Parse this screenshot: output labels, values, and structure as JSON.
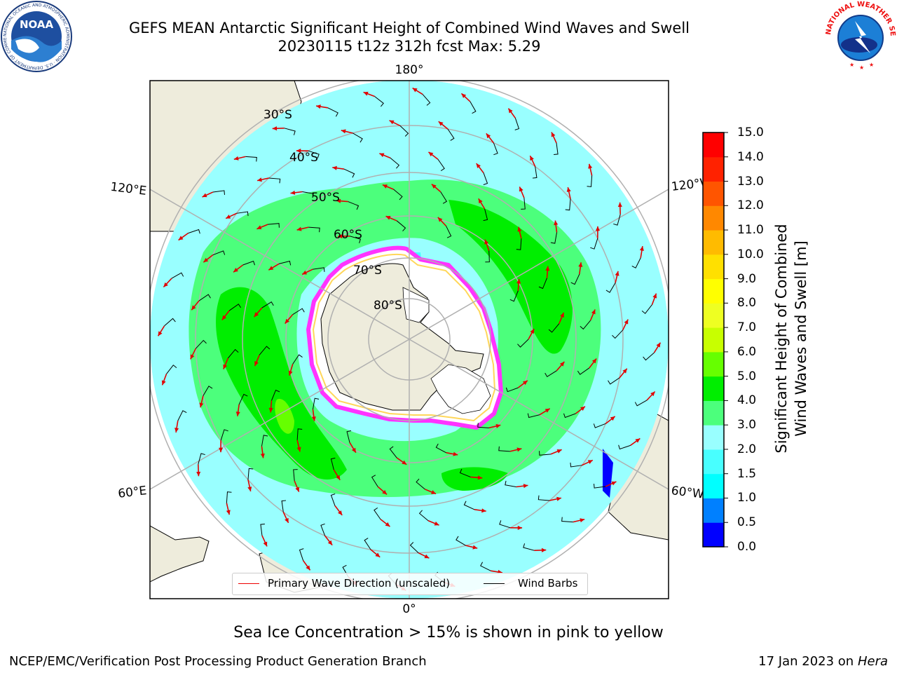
{
  "header": {
    "title_line1": "GEFS MEAN Antarctic Significant Height of Combined Wind Waves and Swell",
    "title_line2": "20230115 t12z 312h fcst   Max: 5.29"
  },
  "logos": {
    "noaa_text": "NOAA",
    "noaa_ring_text": "NATIONAL OCEANIC AND ATMOSPHERIC ADMINISTRATION · U.S. DEPARTMENT OF COMMERCE",
    "nws_ring_text": "NATIONAL WEATHER SERVICE"
  },
  "map": {
    "projection": "south polar stereographic",
    "longitude_labels": {
      "top": "180°",
      "bottom": "0°",
      "upper_left": "120°E",
      "upper_right": "120°W",
      "lower_left": "60°E",
      "lower_right": "60°W"
    },
    "latitude_labels": [
      "30°S",
      "40°S",
      "50°S",
      "60°S",
      "70°S",
      "80°S"
    ],
    "colors": {
      "land": "#eeecdc",
      "ice": "#ffffff",
      "ice_edge": "#ff33ff",
      "ocean_lowest": "#99ffff",
      "grid": "#b0b0b0"
    }
  },
  "colorbar": {
    "label_line1": "Significant Height of Combined",
    "label_line2": "Wind Waves and Swell [m]",
    "ticks": [
      "0.0",
      "0.5",
      "1.0",
      "1.5",
      "2.0",
      "3.0",
      "4.0",
      "5.0",
      "6.0",
      "7.0",
      "8.0",
      "9.0",
      "10.0",
      "11.0",
      "12.0",
      "13.0",
      "14.0",
      "15.0"
    ],
    "colors": [
      "#0000ff",
      "#0080ff",
      "#00ffff",
      "#48ffff",
      "#99ffff",
      "#4cff7c",
      "#00ee00",
      "#66ff00",
      "#c8ff00",
      "#eeff22",
      "#ffff00",
      "#ffe000",
      "#ffbb00",
      "#ff8800",
      "#ff5500",
      "#ff2200",
      "#ff0000"
    ]
  },
  "legend": {
    "primary_wave_label": "Primary Wave Direction (unscaled)",
    "primary_wave_color": "#e00000",
    "wind_barbs_label": "Wind Barbs",
    "wind_barbs_color": "#000000"
  },
  "subtitle": "Sea Ice Concentration > 15% is shown in pink to yellow",
  "footer": {
    "left": "NCEP/EMC/Verification Post Processing Product Generation Branch",
    "right_date": "17 Jan 2023 on",
    "right_host": "Hera"
  }
}
